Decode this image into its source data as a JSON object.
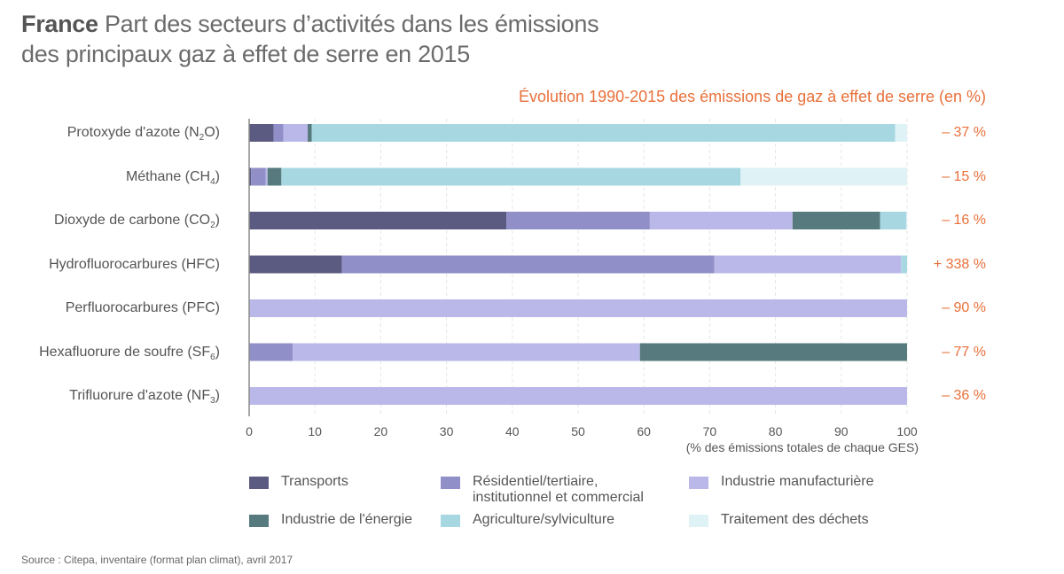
{
  "title": {
    "country": "France",
    "line1": "Part des secteurs d’activités dans les émissions",
    "line2": "des principaux gaz à effet de serre en 2015"
  },
  "source": "Source : Citepa, inventaire (format plan climat), avril 2017",
  "chart_data": {
    "type": "bar",
    "orientation": "horizontal",
    "stacked": true,
    "title": "Part des secteurs d’activités dans les émissions des principaux gaz à effet de serre en 2015",
    "xlabel": "(% des émissions totales de chaque GES)",
    "xlim": [
      0,
      100
    ],
    "xticks": [
      "0",
      "10",
      "20",
      "30",
      "40",
      "50",
      "60",
      "70",
      "80",
      "90",
      "100"
    ],
    "grid": true,
    "legend_position": "bottom",
    "categories": [
      {
        "name": "Protoxyde d'azote (N",
        "sub": "2",
        "tail": "O)"
      },
      {
        "name": "Méthane (CH",
        "sub": "4",
        "tail": ")"
      },
      {
        "name": "Dioxyde de carbone (CO",
        "sub": "2",
        "tail": ")"
      },
      {
        "name": "Hydrofluorocarbures (HFC)",
        "sub": "",
        "tail": ""
      },
      {
        "name": "Perfluorocarbures (PFC)",
        "sub": "",
        "tail": ""
      },
      {
        "name": "Hexafluorure de soufre (SF",
        "sub": "6",
        "tail": ")"
      },
      {
        "name": "Trifluorure d'azote (NF",
        "sub": "3",
        "tail": ")"
      }
    ],
    "series": [
      {
        "name": "Transports",
        "color": "#5b5a80",
        "values": [
          3.7,
          0.3,
          39.1,
          14.1,
          0,
          0,
          0
        ]
      },
      {
        "name": "Résidentiel/tertiaire, institutionnel et commercial",
        "label_line1": "Résidentiel/tertiaire,",
        "label_line2": "institutionnel et commercial",
        "color": "#908fc8",
        "values": [
          1.5,
          2.2,
          21.8,
          56.6,
          0,
          6.6,
          0
        ]
      },
      {
        "name": "Industrie manufacturière",
        "color": "#b9b8e8",
        "values": [
          3.7,
          0.3,
          21.7,
          28.4,
          100,
          52.8,
          100
        ]
      },
      {
        "name": "Industrie de l'énergie",
        "color": "#567a7e",
        "values": [
          0.6,
          2.1,
          13.3,
          0,
          0,
          40.6,
          0
        ]
      },
      {
        "name": "Agriculture/sylviculture",
        "color": "#a7d8e2",
        "values": [
          88.7,
          69.8,
          4.0,
          0.9,
          0,
          0,
          0
        ]
      },
      {
        "name": "Traitement des déchets",
        "color": "#dff2f6",
        "values": [
          1.8,
          25.3,
          0.1,
          0,
          0,
          0,
          0
        ]
      }
    ],
    "evolution_title": "Évolution 1990-2015 des émissions de gaz à effet de serre (en %)",
    "evolution_1990_2015": [
      "– 37 %",
      "– 15 %",
      "– 16 %",
      "+ 338 %",
      "– 90 %",
      "– 77 %",
      "– 36 %"
    ]
  }
}
